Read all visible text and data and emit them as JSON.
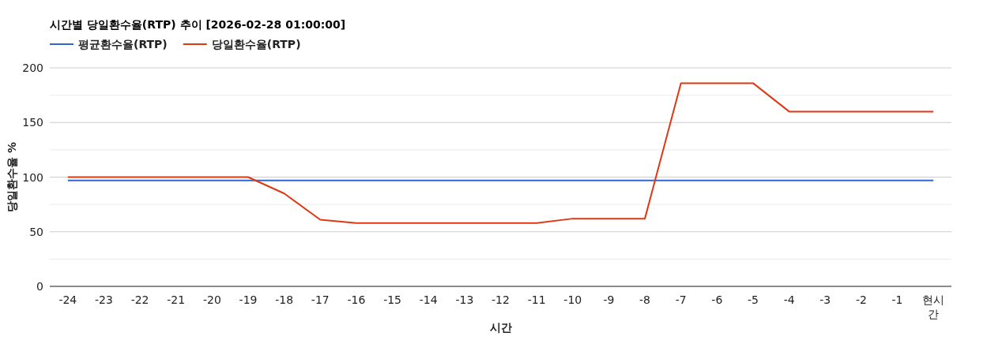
{
  "chart_data": {
    "type": "line",
    "title": "시간별 당일환수율(RTP) 추이 [2026-02-28 01:00:00]",
    "xlabel": "시간",
    "ylabel": "당일환수율 %",
    "categories": [
      "-24",
      "-23",
      "-22",
      "-21",
      "-20",
      "-19",
      "-18",
      "-17",
      "-16",
      "-15",
      "-14",
      "-13",
      "-12",
      "-11",
      "-10",
      "-9",
      "-8",
      "-7",
      "-6",
      "-5",
      "-4",
      "-3",
      "-2",
      "-1",
      "현시간"
    ],
    "series": [
      {
        "name": "평균환수율(RTP)",
        "color": "#3366cc",
        "values": [
          97,
          97,
          97,
          97,
          97,
          97,
          97,
          97,
          97,
          97,
          97,
          97,
          97,
          97,
          97,
          97,
          97,
          97,
          97,
          97,
          97,
          97,
          97,
          97,
          97
        ]
      },
      {
        "name": "당일환수율(RTP)",
        "color": "#dc3912",
        "values": [
          100,
          100,
          100,
          100,
          100,
          100,
          85,
          61,
          58,
          58,
          58,
          58,
          58,
          58,
          62,
          62,
          62,
          186,
          186,
          186,
          160,
          160,
          160,
          160,
          160
        ]
      }
    ],
    "ylim": [
      0,
      200
    ],
    "yticks": [
      0,
      {
        "value": 25,
        "label": null
      },
      50,
      {
        "value": 75,
        "label": null
      },
      100,
      {
        "value": 125,
        "label": null
      },
      150,
      {
        "value": 175,
        "label": null
      },
      200
    ],
    "grid": true,
    "legend": "top left",
    "marker": "none",
    "line_style": "solid"
  }
}
